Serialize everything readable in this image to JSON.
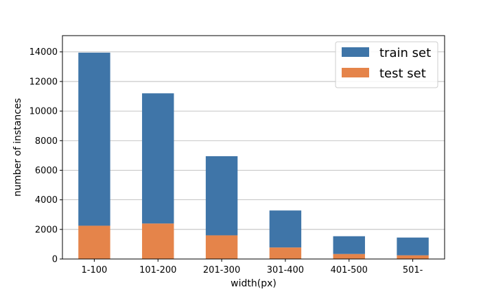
{
  "chart_data": {
    "type": "bar",
    "stacked": true,
    "categories": [
      "1-100",
      "101-200",
      "201-300",
      "301-400",
      "401-500",
      "501-"
    ],
    "series": [
      {
        "name": "train set",
        "values": [
          11700,
          8800,
          5350,
          2500,
          1200,
          1200
        ],
        "color": "#3f75a8"
      },
      {
        "name": "test set",
        "values": [
          2250,
          2400,
          1600,
          780,
          340,
          250
        ],
        "color": "#e5844a"
      }
    ],
    "xlabel": "width(px)",
    "ylabel": "number of instances",
    "ylim": [
      0,
      15100
    ],
    "yticks": [
      "0",
      "2000",
      "4000",
      "6000",
      "8000",
      "10000",
      "12000",
      "14000"
    ],
    "grid": "horizontal",
    "legend_position": "top-right"
  }
}
